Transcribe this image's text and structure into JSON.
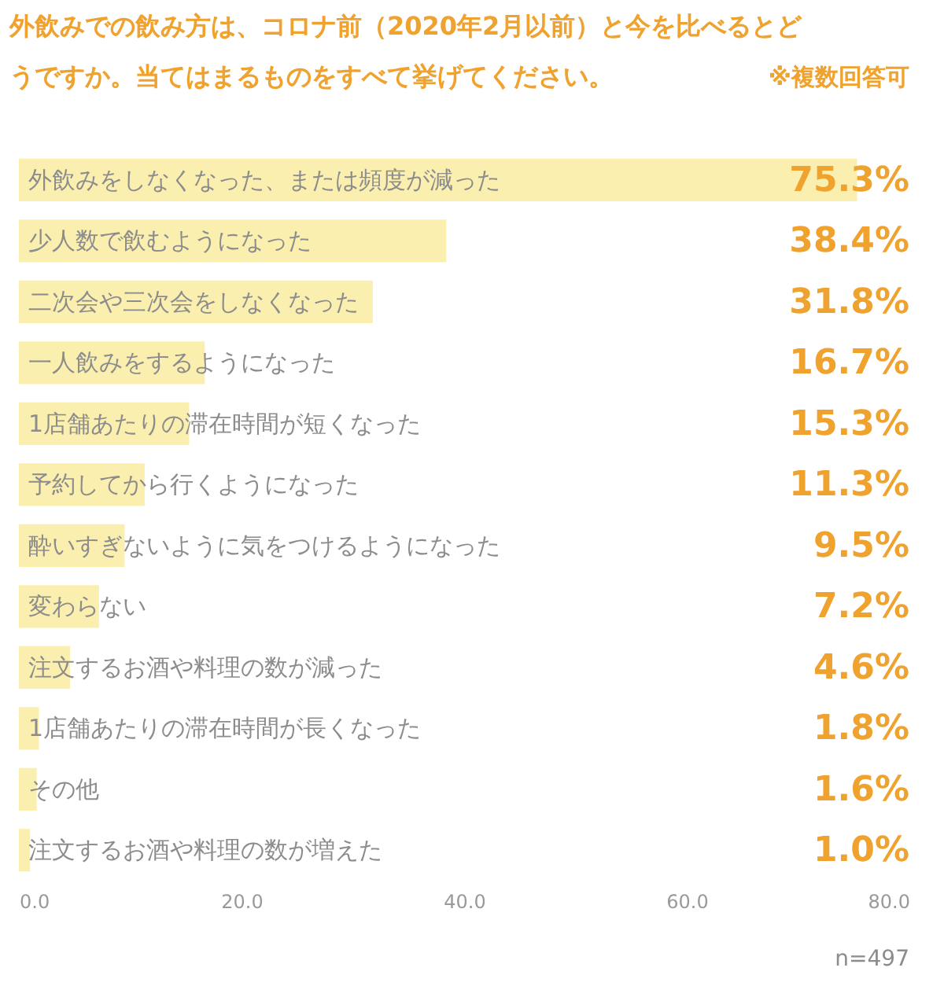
{
  "chart_data": {
    "type": "bar",
    "orientation": "horizontal",
    "title": "外飲みでの飲み方は、コロナ前（2020年2月以前）と今を比べるとどうですか。当てはまるものをすべて挙げてください。",
    "categories": [
      "外飲みをしなくなった、または頻度が減った",
      "少人数で飲むようになった",
      "二次会や三次会をしなくなった",
      "一人飲みをするようになった",
      "1店舗あたりの滞在時間が短くなった",
      "予約してから行くようになった",
      "酔いすぎないように気をつけるようになった",
      "変わらない",
      "注文するお酒や料理の数が減った",
      "1店舗あたりの滞在時間が長くなった",
      "その他",
      "注文するお酒や料理の数が増えた"
    ],
    "values": [
      75.3,
      38.4,
      31.8,
      16.7,
      15.3,
      11.3,
      9.5,
      7.2,
      4.6,
      1.8,
      1.6,
      1.0
    ],
    "value_labels": [
      "75.3%",
      "38.4%",
      "31.8%",
      "16.7%",
      "15.3%",
      "11.3%",
      "9.5%",
      "7.2%",
      "4.6%",
      "1.8%",
      "1.6%",
      "1.0%"
    ],
    "color": "#fbefaf",
    "xlim": [
      0,
      80
    ],
    "xticks": [
      {
        "value": 0,
        "label": "0.0"
      },
      {
        "value": 20,
        "label": "20.0"
      },
      {
        "value": 40,
        "label": "40.0"
      },
      {
        "value": 60,
        "label": "60.0"
      },
      {
        "value": 80,
        "label": "80.0"
      }
    ],
    "grid": false,
    "annotations": [
      "※複数回答可",
      "n=497"
    ]
  }
}
